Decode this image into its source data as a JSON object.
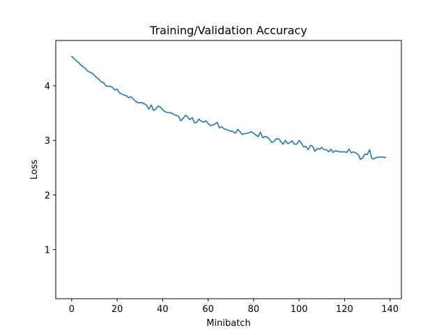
{
  "chart_data": {
    "type": "line",
    "title": "Training/Validation Accuracy",
    "xlabel": "Minibatch",
    "ylabel": "Loss",
    "xlim": [
      -7,
      145
    ],
    "ylim": [
      0.1,
      4.83
    ],
    "xticks": [
      0,
      20,
      40,
      60,
      80,
      100,
      120,
      140
    ],
    "yticks": [
      1,
      2,
      3,
      4
    ],
    "grid": false,
    "legend": false,
    "series": [
      {
        "color": "#1f77b4",
        "x": [
          0,
          1,
          2,
          3,
          4,
          5,
          6,
          7,
          8,
          9,
          10,
          11,
          12,
          13,
          14,
          15,
          16,
          17,
          18,
          19,
          20,
          21,
          22,
          23,
          24,
          25,
          26,
          27,
          28,
          29,
          30,
          31,
          32,
          33,
          34,
          35,
          36,
          37,
          38,
          39,
          40,
          41,
          42,
          43,
          44,
          45,
          46,
          47,
          48,
          49,
          50,
          51,
          52,
          53,
          54,
          55,
          56,
          57,
          58,
          59,
          60,
          61,
          62,
          63,
          64,
          65,
          66,
          67,
          68,
          69,
          70,
          71,
          72,
          73,
          74,
          75,
          76,
          77,
          78,
          79,
          80,
          81,
          82,
          83,
          84,
          85,
          86,
          87,
          88,
          89,
          90,
          91,
          92,
          93,
          94,
          95,
          96,
          97,
          98,
          99,
          100,
          101,
          102,
          103,
          104,
          105,
          106,
          107,
          108,
          109,
          110,
          111,
          112,
          113,
          114,
          115,
          116,
          117,
          118,
          119,
          120,
          121,
          122,
          123,
          124,
          125,
          126,
          127,
          128,
          129,
          130,
          131,
          132,
          133,
          134,
          135,
          136,
          137,
          138
        ],
        "y": [
          4.54,
          4.5,
          4.46,
          4.43,
          4.38,
          4.35,
          4.32,
          4.27,
          4.25,
          4.23,
          4.19,
          4.15,
          4.12,
          4.07,
          4.06,
          4.0,
          3.99,
          3.99,
          3.97,
          3.92,
          3.94,
          3.87,
          3.85,
          3.83,
          3.82,
          3.78,
          3.8,
          3.76,
          3.72,
          3.69,
          3.69,
          3.69,
          3.67,
          3.64,
          3.57,
          3.65,
          3.55,
          3.57,
          3.63,
          3.61,
          3.56,
          3.53,
          3.51,
          3.51,
          3.5,
          3.47,
          3.46,
          3.44,
          3.36,
          3.4,
          3.46,
          3.43,
          3.38,
          3.42,
          3.32,
          3.33,
          3.39,
          3.35,
          3.33,
          3.36,
          3.31,
          3.27,
          3.28,
          3.3,
          3.33,
          3.23,
          3.25,
          3.21,
          3.2,
          3.18,
          3.17,
          3.16,
          3.13,
          3.2,
          3.16,
          3.11,
          3.12,
          3.13,
          3.14,
          3.16,
          3.13,
          3.1,
          3.07,
          3.15,
          3.05,
          3.07,
          3.06,
          3.02,
          2.96,
          2.98,
          3.03,
          3.03,
          2.98,
          2.93,
          3.0,
          2.94,
          2.96,
          2.99,
          2.93,
          2.93,
          3.0,
          2.95,
          2.88,
          2.89,
          2.83,
          2.91,
          2.89,
          2.8,
          2.85,
          2.84,
          2.87,
          2.83,
          2.83,
          2.79,
          2.84,
          2.78,
          2.81,
          2.8,
          2.79,
          2.79,
          2.79,
          2.78,
          2.84,
          2.77,
          2.79,
          2.77,
          2.74,
          2.65,
          2.68,
          2.75,
          2.74,
          2.83,
          2.67,
          2.66,
          2.69,
          2.69,
          2.7,
          2.69,
          2.69
        ]
      }
    ]
  }
}
